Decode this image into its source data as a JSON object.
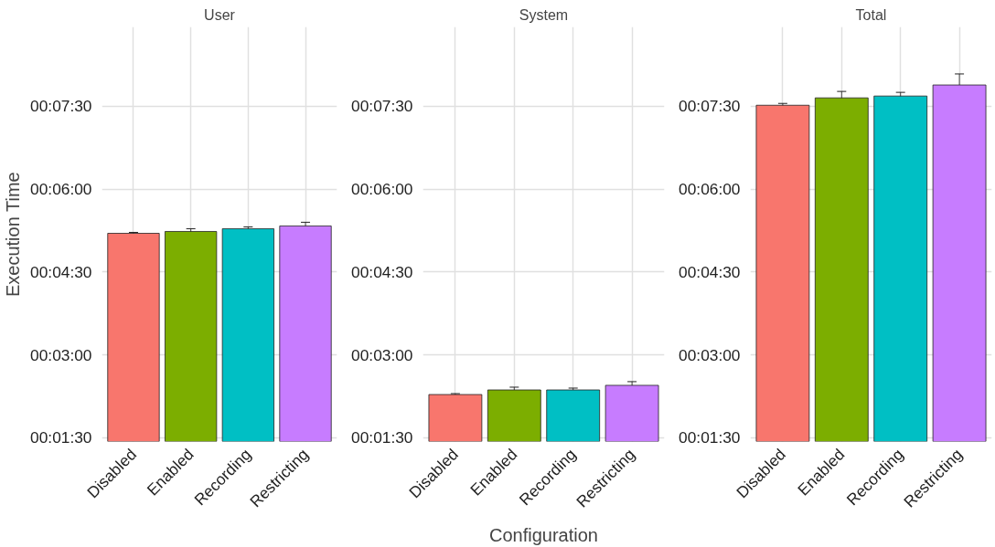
{
  "chart_data": [
    {
      "type": "bar",
      "title": "User",
      "ylabel": "Execution Time",
      "categories": [
        "Disabled",
        "Enabled",
        "Recording",
        "Restricting"
      ],
      "values": [
        312,
        314,
        317,
        320
      ],
      "errors": [
        1,
        3,
        2,
        4
      ],
      "colors": [
        "#f8766d",
        "#7cae00",
        "#00bfc4",
        "#c77cff"
      ],
      "ylim": [
        86,
        536
      ],
      "yticks": [
        {
          "value": 90,
          "label": "00:01:30"
        },
        {
          "value": 180,
          "label": "00:03:00"
        },
        {
          "value": 270,
          "label": "00:04:30"
        },
        {
          "value": 360,
          "label": "00:06:00"
        },
        {
          "value": 450,
          "label": "00:07:30"
        }
      ],
      "grid": true,
      "legend": false
    },
    {
      "type": "bar",
      "title": "System",
      "xlabel": "Configuration",
      "categories": [
        "Disabled",
        "Enabled",
        "Recording",
        "Restricting"
      ],
      "values": [
        137,
        142,
        142,
        147
      ],
      "errors": [
        1,
        3,
        2,
        4
      ],
      "colors": [
        "#f8766d",
        "#7cae00",
        "#00bfc4",
        "#c77cff"
      ],
      "ylim": [
        86,
        536
      ],
      "yticks": [
        {
          "value": 90,
          "label": "00:01:30"
        },
        {
          "value": 180,
          "label": "00:03:00"
        },
        {
          "value": 270,
          "label": "00:04:30"
        },
        {
          "value": 360,
          "label": "00:06:00"
        },
        {
          "value": 450,
          "label": "00:07:30"
        }
      ],
      "grid": true,
      "legend": false
    },
    {
      "type": "bar",
      "title": "Total",
      "categories": [
        "Disabled",
        "Enabled",
        "Recording",
        "Restricting"
      ],
      "values": [
        451,
        459,
        461,
        473
      ],
      "errors": [
        2,
        7,
        4,
        12
      ],
      "colors": [
        "#f8766d",
        "#7cae00",
        "#00bfc4",
        "#c77cff"
      ],
      "ylim": [
        86,
        536
      ],
      "yticks": [
        {
          "value": 90,
          "label": "00:01:30"
        },
        {
          "value": 180,
          "label": "00:03:00"
        },
        {
          "value": 270,
          "label": "00:04:30"
        },
        {
          "value": 360,
          "label": "00:06:00"
        },
        {
          "value": 450,
          "label": "00:07:30"
        }
      ],
      "grid": true,
      "legend": false
    }
  ]
}
